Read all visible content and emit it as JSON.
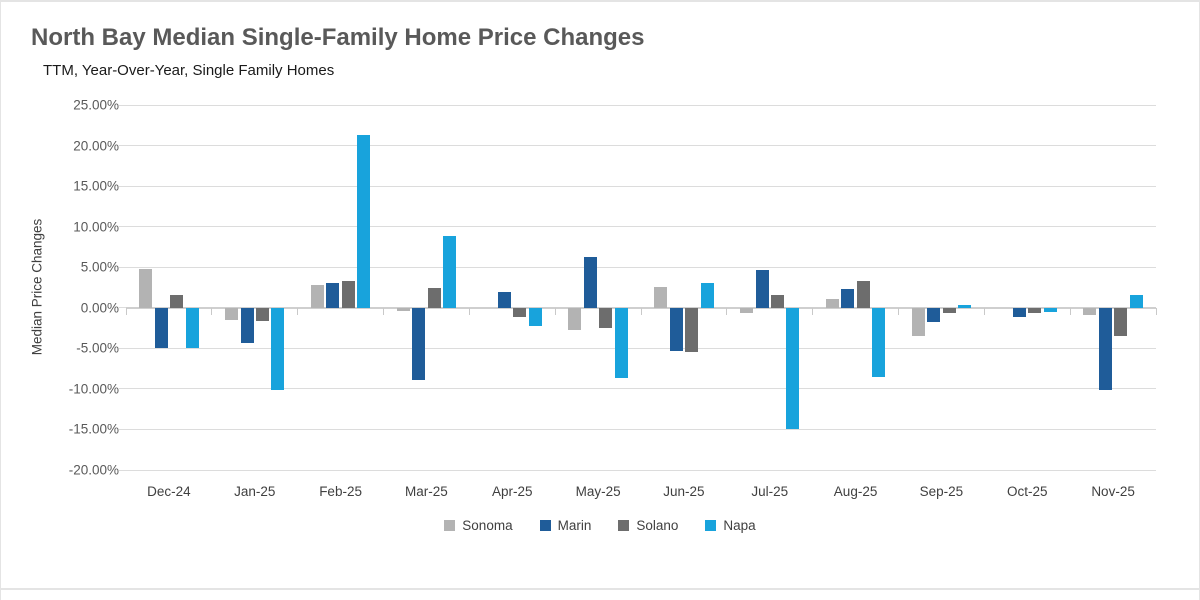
{
  "chart_data": {
    "type": "bar",
    "title": "North Bay Median Single-Family Home Price Changes",
    "subtitle": "TTM, Year-Over-Year, Single Family Homes",
    "ylabel": "Median Price Changes",
    "xlabel": "",
    "ylim": [
      -20,
      25
    ],
    "y_tick_step": 5,
    "y_tick_labels": [
      "25.00%",
      "20.00%",
      "15.00%",
      "10.00%",
      "5.00%",
      "0.00%",
      "-5.00%",
      "-10.00%",
      "-15.00%",
      "-20.00%"
    ],
    "grid": true,
    "legend_position": "bottom",
    "categories": [
      "Dec-24",
      "Jan-25",
      "Feb-25",
      "Mar-25",
      "Apr-25",
      "May-25",
      "Jun-25",
      "Jul-25",
      "Aug-25",
      "Sep-25",
      "Oct-25",
      "Nov-25"
    ],
    "series": [
      {
        "name": "Sonoma",
        "color": "#b3b3b3",
        "values": [
          4.8,
          -1.5,
          2.8,
          -0.4,
          0.0,
          -2.8,
          2.6,
          -0.6,
          1.1,
          -3.5,
          0.0,
          -0.9
        ]
      },
      {
        "name": "Marin",
        "color": "#1f5c99",
        "values": [
          -5.0,
          -4.3,
          3.0,
          -8.9,
          1.9,
          6.3,
          -5.3,
          4.6,
          2.3,
          -1.8,
          -1.1,
          -10.1
        ]
      },
      {
        "name": "Solano",
        "color": "#6d6d6d",
        "values": [
          1.6,
          -1.6,
          3.3,
          2.5,
          -1.1,
          -2.5,
          -5.4,
          1.6,
          3.3,
          -0.6,
          -0.7,
          -3.5
        ]
      },
      {
        "name": "Napa",
        "color": "#18a3dc",
        "values": [
          -4.9,
          -10.2,
          21.3,
          8.9,
          -2.3,
          -8.6,
          3.1,
          -15.0,
          -8.5,
          0.3,
          -0.5,
          1.6
        ]
      }
    ]
  }
}
